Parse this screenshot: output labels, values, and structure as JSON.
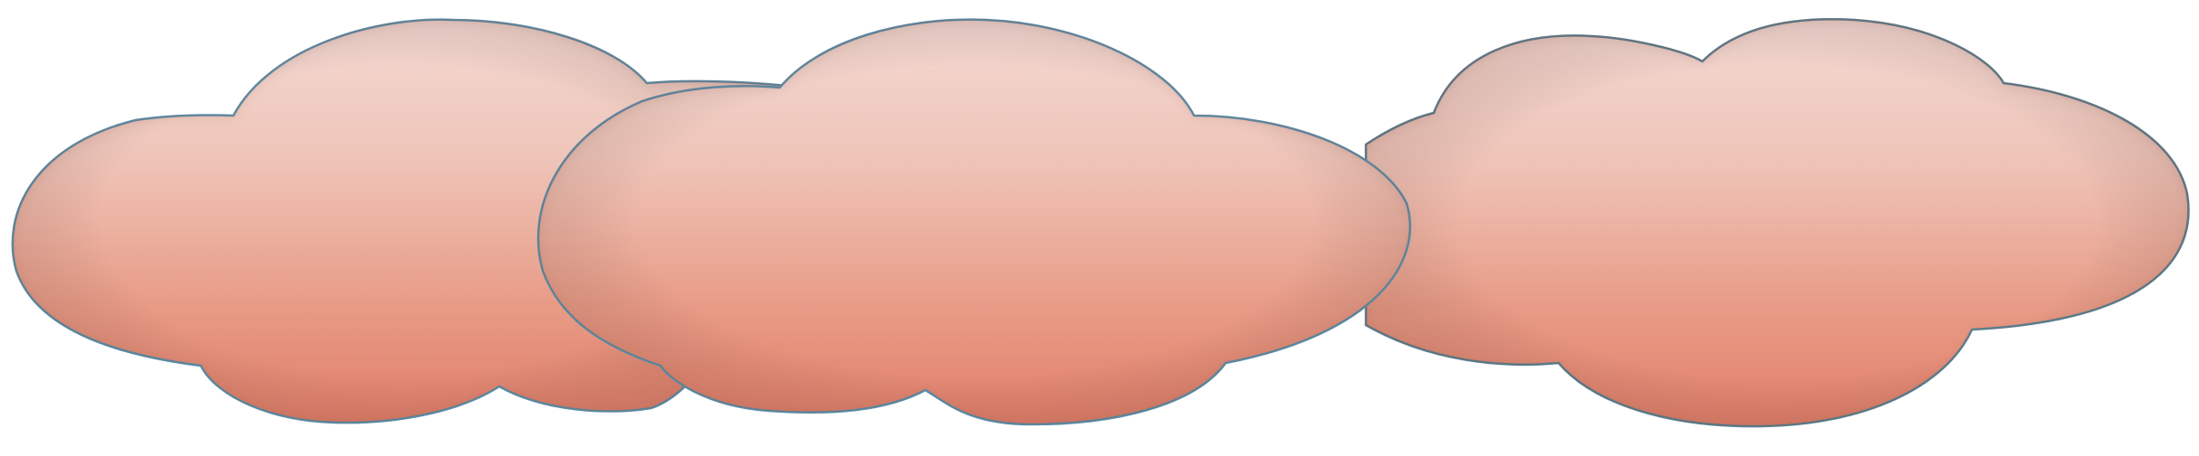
{
  "scene": {
    "background_color": "#ffffff",
    "cloud_count": 3
  },
  "clouds": [
    {
      "name": "cloud-left",
      "fill_top": "#f3d9d2",
      "fill_bottom": "#e07f6a",
      "outline": "#5a8fa8"
    },
    {
      "name": "cloud-right",
      "fill_top": "#f3d9d2",
      "fill_bottom": "#e07f6a",
      "outline": "#5a7f8f"
    },
    {
      "name": "cloud-middle",
      "fill_top": "#f3d9d2",
      "fill_bottom": "#e07f6a",
      "outline": "#5a8fa8"
    }
  ]
}
